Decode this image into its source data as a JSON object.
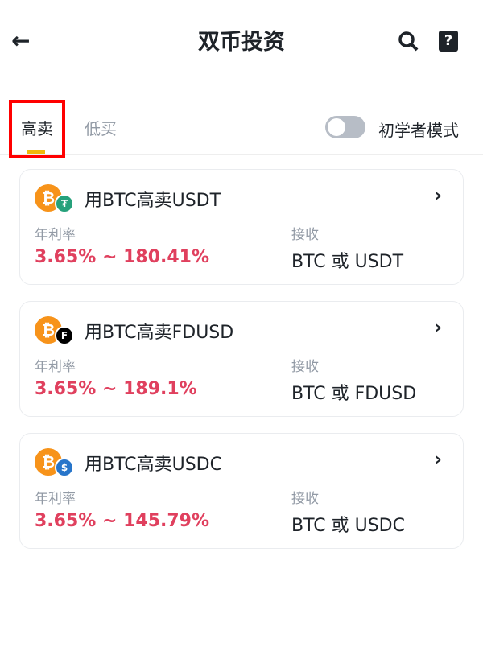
{
  "header": {
    "title": "双币投资",
    "back_icon": "arrow-left-icon",
    "search_icon": "search-icon",
    "help_icon": "help-book-icon"
  },
  "tabs": [
    {
      "label": "高卖",
      "active": true
    },
    {
      "label": "低买",
      "active": false
    }
  ],
  "beginner_mode": {
    "label": "初学者模式",
    "enabled": false
  },
  "colors": {
    "accent": "#f0b90b",
    "apr": "#e0405e"
  },
  "products": [
    {
      "title": "用BTC高卖USDT",
      "apr_label": "年利率",
      "apr": "3.65% ~ 180.41%",
      "receive_label": "接收",
      "receive": "BTC 或 USDT",
      "sub_coin": "USDT",
      "sub_color": "#26a17b",
      "sub_glyph": "₮"
    },
    {
      "title": "用BTC高卖FDUSD",
      "apr_label": "年利率",
      "apr": "3.65% ~ 189.1%",
      "receive_label": "接收",
      "receive": "BTC 或 FDUSD",
      "sub_coin": "FDUSD",
      "sub_color": "#000000",
      "sub_glyph": "F"
    },
    {
      "title": "用BTC高卖USDC",
      "apr_label": "年利率",
      "apr": "3.65% ~ 145.79%",
      "receive_label": "接收",
      "receive": "BTC 或 USDC",
      "sub_coin": "USDC",
      "sub_color": "#2775ca",
      "sub_glyph": "$"
    }
  ]
}
